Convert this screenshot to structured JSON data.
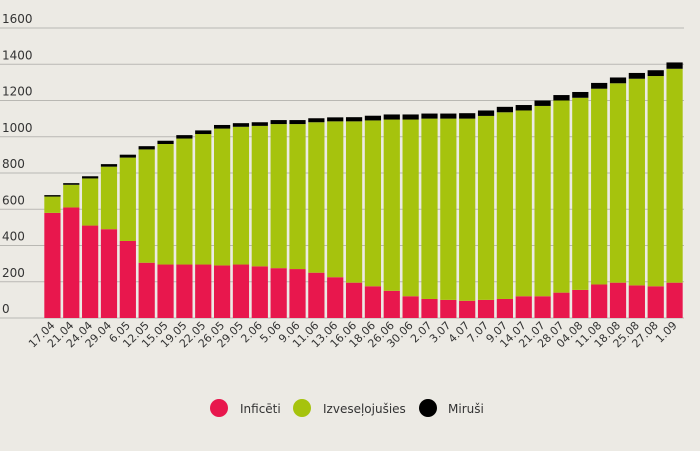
{
  "chart_data": {
    "type": "bar",
    "stacked": true,
    "title": "",
    "xlabel": "",
    "ylabel": "",
    "ylim": [
      0,
      1600
    ],
    "yticks": [
      0,
      200,
      400,
      600,
      800,
      1000,
      1200,
      1400,
      1600
    ],
    "grid": true,
    "legend_position": "bottom",
    "categories": [
      "17.04",
      "21.04",
      "24.04",
      "29.04",
      "6.05",
      "12.05",
      "15.05",
      "19.05",
      "22.05",
      "26.05",
      "29.05",
      "2.06",
      "5.06",
      "9.06",
      "11.06",
      "13.06",
      "16.06",
      "18.06",
      "26.06",
      "30.06",
      "2.07",
      "3.07",
      "4.07",
      "7.07",
      "9.07",
      "14.07",
      "21.07",
      "28.07",
      "04.08",
      "11.08",
      "18.08",
      "25.08",
      "27.08",
      "1.09"
    ],
    "series": [
      {
        "name": "Inficēti",
        "color": "#e8174d",
        "values": [
          580,
          610,
          510,
          490,
          425,
          305,
          295,
          295,
          295,
          290,
          295,
          285,
          275,
          270,
          250,
          225,
          195,
          175,
          150,
          120,
          105,
          100,
          95,
          100,
          105,
          120,
          120,
          140,
          155,
          185,
          195,
          180,
          175,
          195
        ]
      },
      {
        "name": "Izveseļojušies",
        "color": "#a6c30d",
        "values": [
          90,
          125,
          260,
          345,
          460,
          625,
          665,
          695,
          720,
          755,
          760,
          775,
          795,
          800,
          830,
          860,
          890,
          915,
          945,
          975,
          995,
          1000,
          1005,
          1015,
          1030,
          1025,
          1050,
          1060,
          1060,
          1080,
          1100,
          1140,
          1160,
          1180
        ]
      },
      {
        "name": "Miruši",
        "color": "#000000",
        "values": [
          8,
          9,
          12,
          14,
          16,
          18,
          18,
          19,
          20,
          20,
          20,
          20,
          22,
          22,
          22,
          22,
          23,
          26,
          28,
          28,
          28,
          28,
          30,
          30,
          30,
          30,
          30,
          30,
          32,
          32,
          32,
          32,
          32,
          35
        ]
      }
    ]
  }
}
